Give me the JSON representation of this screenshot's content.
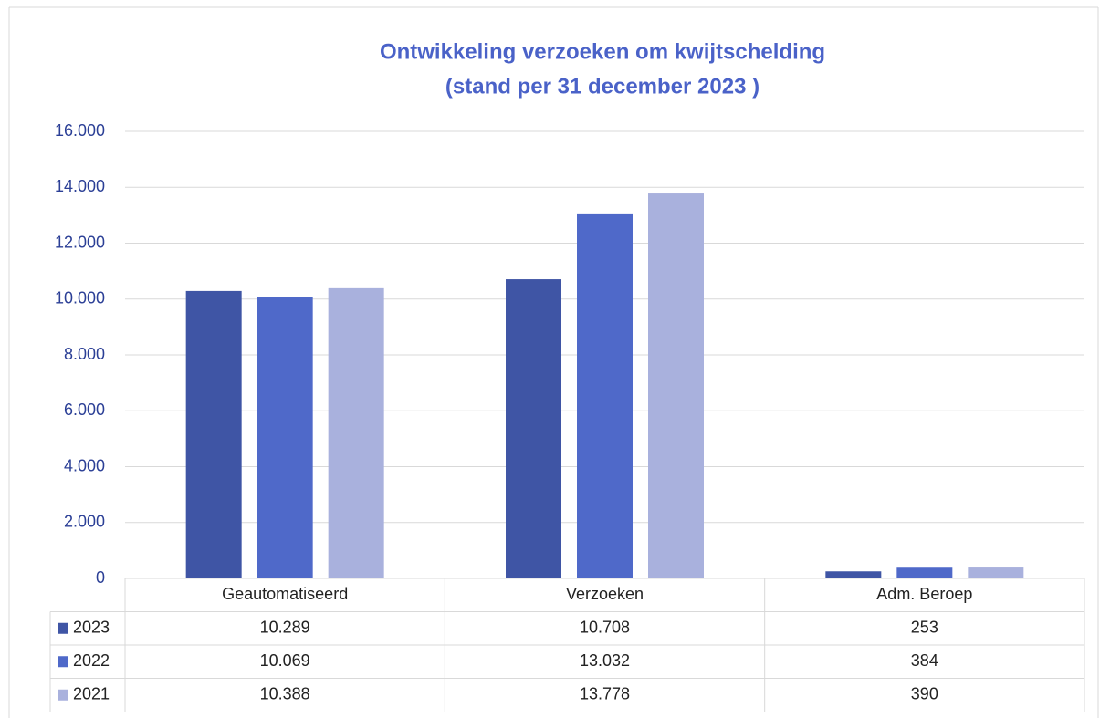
{
  "chart_data": {
    "type": "bar",
    "title": "Ontwikkeling verzoeken om kwijtschelding",
    "subtitle": "(stand per 31 december 2023 )",
    "categories": [
      "Geautomatiseerd",
      "Verzoeken",
      "Adm. Beroep"
    ],
    "series": [
      {
        "name": "2023",
        "color": "#3f55a5",
        "values": [
          10289,
          10708,
          253
        ],
        "value_labels": [
          "10.289",
          "10.708",
          "253"
        ]
      },
      {
        "name": "2022",
        "color": "#4f69c9",
        "values": [
          10069,
          13032,
          384
        ],
        "value_labels": [
          "10.069",
          "13.032",
          "384"
        ]
      },
      {
        "name": "2021",
        "color": "#a9b1dd",
        "values": [
          10388,
          13778,
          390
        ],
        "value_labels": [
          "10.388",
          "13.778",
          "390"
        ]
      }
    ],
    "ylim": [
      0,
      16000
    ],
    "yticks": [
      0,
      {
        "value": 2000,
        "label": "2.000"
      },
      {
        "value": 4000,
        "label": "4.000"
      },
      {
        "value": 6000,
        "label": "6.000"
      },
      {
        "value": 8000,
        "label": "8.000"
      },
      {
        "value": 10000,
        "label": "10.000"
      },
      {
        "value": 12000,
        "label": "12.000"
      },
      {
        "value": 14000,
        "label": "14.000"
      },
      {
        "value": 16000,
        "label": "16.000"
      }
    ],
    "grid": true
  }
}
